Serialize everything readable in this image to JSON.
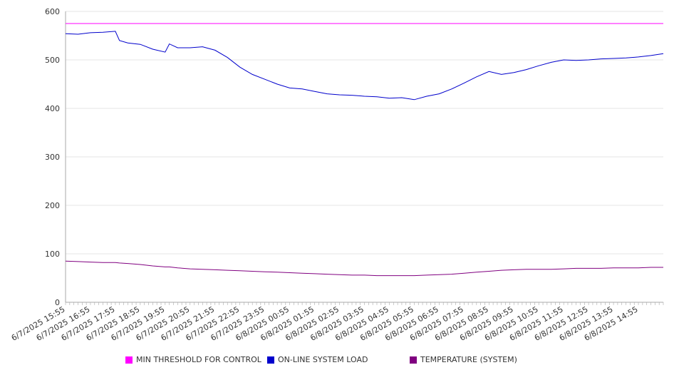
{
  "colors": {
    "threshold": "#ff00ff",
    "load": "#0000cc",
    "temperature": "#800080",
    "grid": "#e6e6e6",
    "axis": "#aaaaaa"
  },
  "legend": {
    "threshold": "MIN THRESHOLD FOR CONTROL",
    "load": "ON-LINE SYSTEM LOAD",
    "temperature": "TEMPERATURE (SYSTEM)"
  },
  "chart_data": {
    "type": "line",
    "ylim": [
      0,
      600
    ],
    "yticks": [
      0,
      100,
      200,
      300,
      400,
      500,
      600
    ],
    "grid": true,
    "legend_position": "bottom",
    "x_tick_labels": [
      "6/7/2025 15:55",
      "6/7/2025 16:55",
      "6/7/2025 17:55",
      "6/7/2025 18:55",
      "6/7/2025 19:55",
      "6/7/2025 20:55",
      "6/7/2025 21:55",
      "6/7/2025 22:55",
      "6/7/2025 23:55",
      "6/8/2025 00:55",
      "6/8/2025 01:55",
      "6/8/2025 02:55",
      "6/8/2025 03:55",
      "6/8/2025 04:55",
      "6/8/2025 05:55",
      "6/8/2025 06:55",
      "6/8/2025 07:55",
      "6/8/2025 08:55",
      "6/8/2025 09:55",
      "6/8/2025 10:55",
      "6/8/2025 11:55",
      "6/8/2025 12:55",
      "6/8/2025 13:55",
      "6/8/2025 14:55"
    ],
    "x": [
      "6/7/2025 15:55",
      "6/7/2025 16:25",
      "6/7/2025 16:55",
      "6/7/2025 17:25",
      "6/7/2025 17:55",
      "6/7/2025 18:05",
      "6/7/2025 18:25",
      "6/7/2025 18:55",
      "6/7/2025 19:25",
      "6/7/2025 19:55",
      "6/7/2025 20:05",
      "6/7/2025 20:25",
      "6/7/2025 20:55",
      "6/7/2025 21:25",
      "6/7/2025 21:55",
      "6/7/2025 22:25",
      "6/7/2025 22:55",
      "6/7/2025 23:25",
      "6/7/2025 23:55",
      "6/8/2025 00:25",
      "6/8/2025 00:55",
      "6/8/2025 01:25",
      "6/8/2025 01:55",
      "6/8/2025 02:25",
      "6/8/2025 02:55",
      "6/8/2025 03:25",
      "6/8/2025 03:55",
      "6/8/2025 04:25",
      "6/8/2025 04:55",
      "6/8/2025 05:25",
      "6/8/2025 05:55",
      "6/8/2025 06:25",
      "6/8/2025 06:55",
      "6/8/2025 07:25",
      "6/8/2025 07:55",
      "6/8/2025 08:25",
      "6/8/2025 08:55",
      "6/8/2025 09:25",
      "6/8/2025 09:55",
      "6/8/2025 10:25",
      "6/8/2025 10:55",
      "6/8/2025 11:25",
      "6/8/2025 11:55",
      "6/8/2025 12:25",
      "6/8/2025 12:55",
      "6/8/2025 13:25",
      "6/8/2025 13:55",
      "6/8/2025 14:25",
      "6/8/2025 14:55",
      "6/8/2025 15:25",
      "6/8/2025 15:55"
    ],
    "series": [
      {
        "name": "MIN THRESHOLD FOR CONTROL",
        "values": [
          575,
          575,
          575,
          575,
          575,
          575,
          575,
          575,
          575,
          575,
          575,
          575,
          575,
          575,
          575,
          575,
          575,
          575,
          575,
          575,
          575,
          575,
          575,
          575,
          575,
          575,
          575,
          575,
          575,
          575,
          575,
          575,
          575,
          575,
          575,
          575,
          575,
          575,
          575,
          575,
          575,
          575,
          575,
          575,
          575,
          575,
          575,
          575,
          575,
          575,
          575
        ]
      },
      {
        "name": "ON-LINE SYSTEM LOAD",
        "values": [
          554,
          553,
          556,
          557,
          559,
          540,
          535,
          532,
          522,
          516,
          533,
          525,
          525,
          527,
          520,
          505,
          485,
          470,
          460,
          450,
          442,
          440,
          435,
          430,
          428,
          427,
          425,
          424,
          421,
          422,
          418,
          425,
          430,
          440,
          452,
          465,
          476,
          470,
          474,
          480,
          488,
          495,
          500,
          499,
          500,
          502,
          503,
          504,
          506,
          509,
          513
        ]
      },
      {
        "name": "TEMPERATURE (SYSTEM)",
        "values": [
          85,
          84,
          83,
          82,
          82,
          81,
          80,
          78,
          75,
          73,
          73,
          71,
          69,
          68,
          67,
          66,
          65,
          64,
          63,
          62,
          61,
          60,
          59,
          58,
          57,
          56,
          56,
          55,
          55,
          55,
          55,
          56,
          57,
          58,
          60,
          62,
          64,
          66,
          67,
          68,
          68,
          68,
          69,
          70,
          70,
          70,
          71,
          71,
          71,
          72,
          72
        ]
      }
    ]
  }
}
